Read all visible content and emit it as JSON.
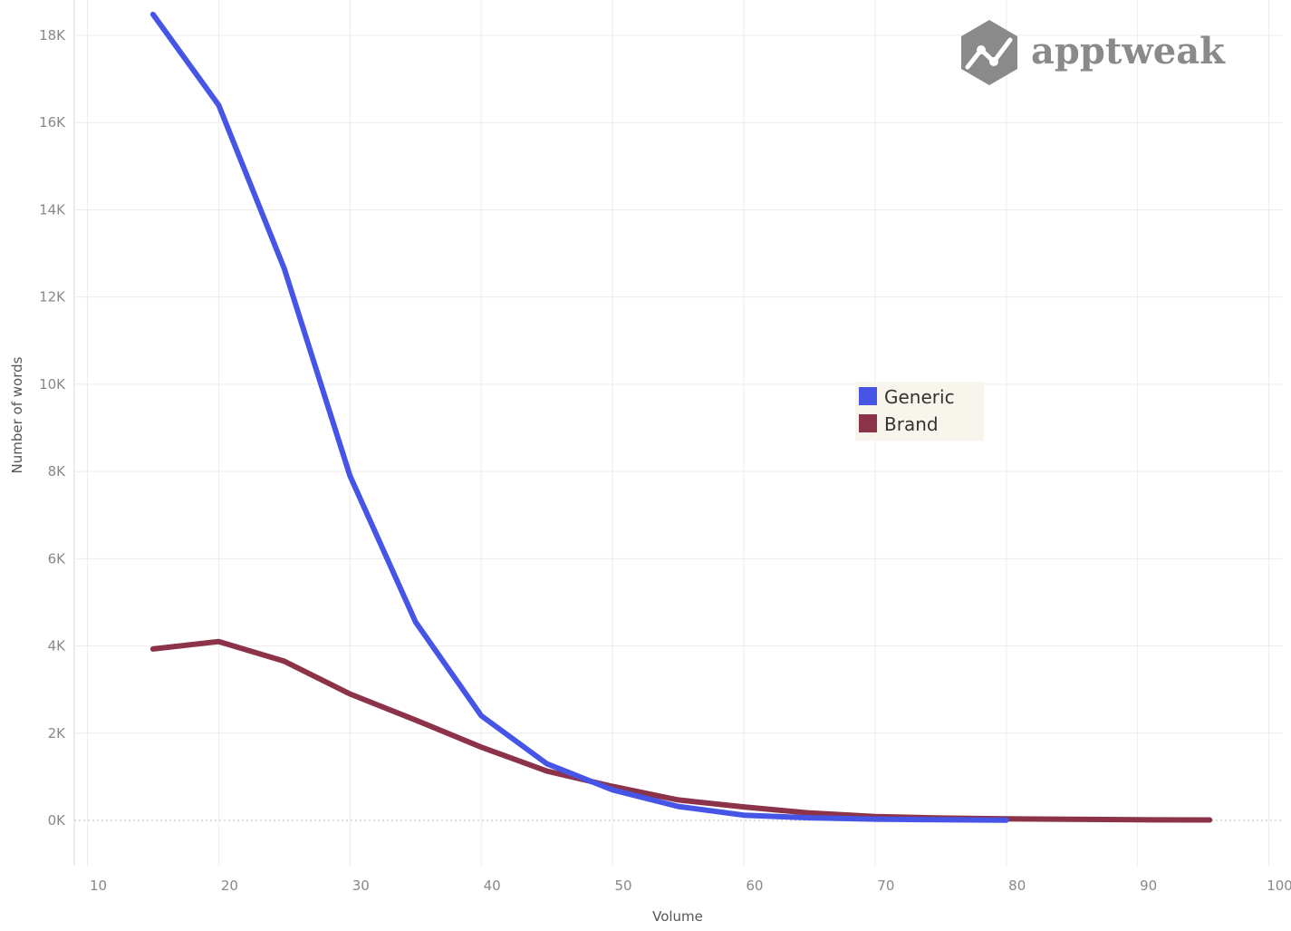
{
  "logo": {
    "text": "apptweak"
  },
  "chart_data": {
    "type": "line",
    "xlabel": "Volume",
    "ylabel": "Number of words",
    "xlim": [
      9,
      101
    ],
    "ylim": [
      -1100,
      18500
    ],
    "xticks": [
      10,
      20,
      30,
      40,
      50,
      60,
      70,
      80,
      90,
      100
    ],
    "xtick_labels": [
      "10",
      "20",
      "30",
      "40",
      "50",
      "60",
      "70",
      "80",
      "90",
      "100"
    ],
    "yticks": [
      0,
      2000,
      4000,
      6000,
      8000,
      10000,
      12000,
      14000,
      16000,
      18000
    ],
    "ytick_labels": [
      "0K",
      "2K",
      "4K",
      "6K",
      "8K",
      "10K",
      "12K",
      "14K",
      "16K",
      "18K"
    ],
    "grid": true,
    "legend_position": "center-right",
    "series": [
      {
        "name": "Generic",
        "color": "#4655e6",
        "x": [
          15,
          20,
          25,
          30,
          35,
          40,
          45,
          50,
          55,
          60,
          65,
          70,
          75,
          80
        ],
        "values": [
          18480,
          16400,
          12650,
          7900,
          4550,
          2400,
          1300,
          700,
          320,
          120,
          60,
          30,
          15,
          5
        ]
      },
      {
        "name": "Brand",
        "color": "#8c3349",
        "x": [
          15,
          20,
          25,
          30,
          35,
          40,
          45,
          50,
          55,
          60,
          65,
          70,
          75,
          80,
          85,
          90,
          95.5
        ],
        "values": [
          3930,
          4100,
          3650,
          2900,
          2300,
          1680,
          1130,
          780,
          470,
          310,
          170,
          90,
          55,
          35,
          25,
          15,
          10
        ]
      }
    ]
  }
}
